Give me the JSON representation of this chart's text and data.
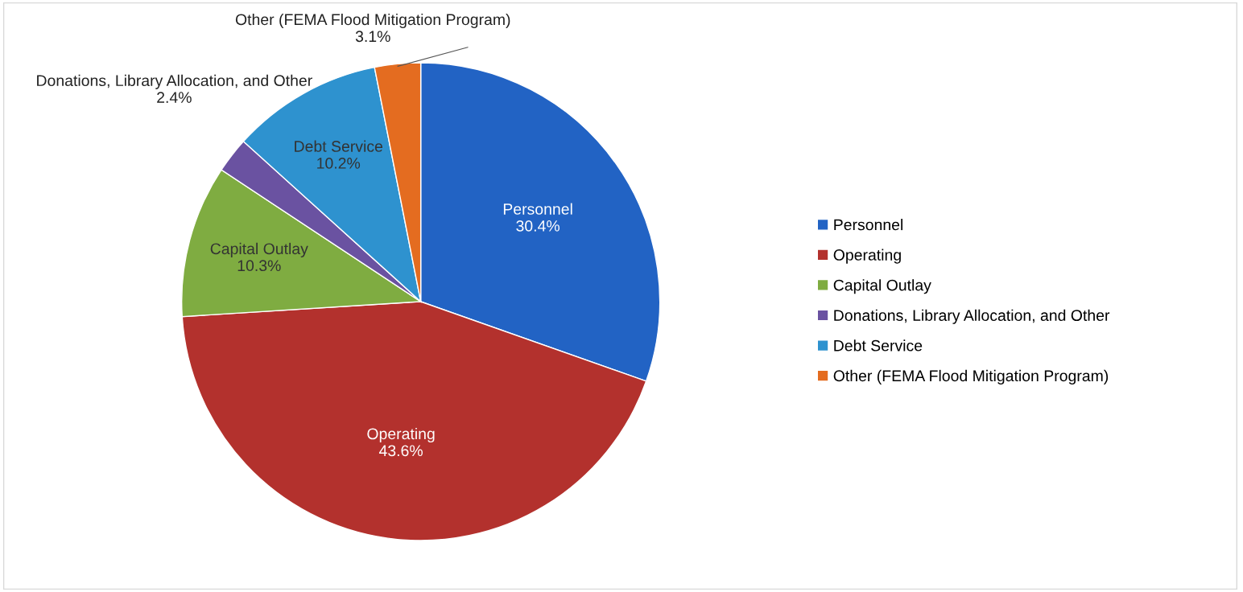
{
  "chart_data": {
    "type": "pie",
    "categories": [
      "Personnel",
      "Operating",
      "Capital Outlay",
      "Donations, Library Allocation, and Other",
      "Debt Service",
      "Other (FEMA Flood Mitigation Program)"
    ],
    "values": [
      30.4,
      43.6,
      10.3,
      2.4,
      10.2,
      3.1
    ],
    "colors": [
      "#2263c4",
      "#b3312d",
      "#7fac41",
      "#6a52a1",
      "#2e92cf",
      "#e46c20"
    ],
    "value_labels": [
      "30.4%",
      "43.6%",
      "10.3%",
      "2.4%",
      "10.2%",
      "3.1%"
    ],
    "legend": "right"
  }
}
